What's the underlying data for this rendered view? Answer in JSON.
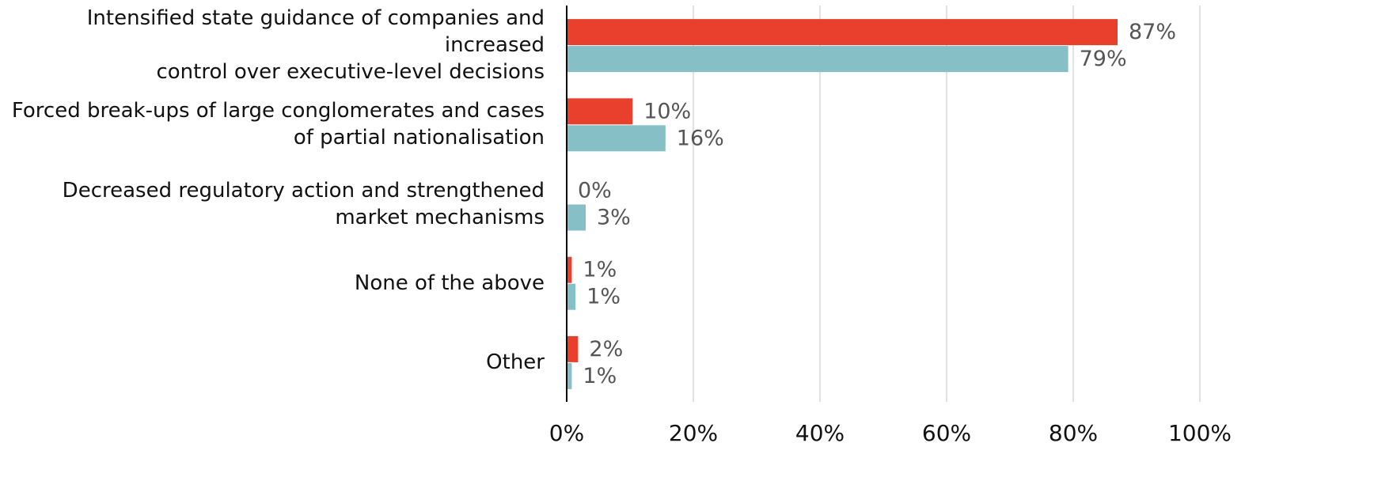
{
  "chart_data": {
    "type": "bar",
    "orientation": "horizontal",
    "categories": [
      "Intensified state guidance of companies and increased\ncontrol over executive-level decisions",
      "Forced break-ups of large conglomerates and cases\nof partial nationalisation",
      "Decreased regulatory action and strengthened\nmarket mechanisms",
      "None of the above",
      "Other"
    ],
    "series": [
      {
        "color": "#e8402c",
        "values": [
          87,
          10.4,
          0,
          0.8,
          1.8
        ],
        "value_labels": [
          "87%",
          "10%",
          "0%",
          "1%",
          "2%"
        ]
      },
      {
        "color": "#86bfc6",
        "values": [
          79.2,
          15.6,
          3,
          1.4,
          0.8
        ],
        "value_labels": [
          "79%",
          "16%",
          "3%",
          "1%",
          "1%"
        ]
      }
    ],
    "xlim": [
      0,
      100
    ],
    "xticks": [
      {
        "value": 0,
        "label": "0%"
      },
      {
        "value": 20,
        "label": "20%"
      },
      {
        "value": 40,
        "label": "40%"
      },
      {
        "value": 60,
        "label": "60%"
      },
      {
        "value": 80,
        "label": "80%"
      },
      {
        "value": 100,
        "label": "100%"
      }
    ],
    "grid": true
  }
}
